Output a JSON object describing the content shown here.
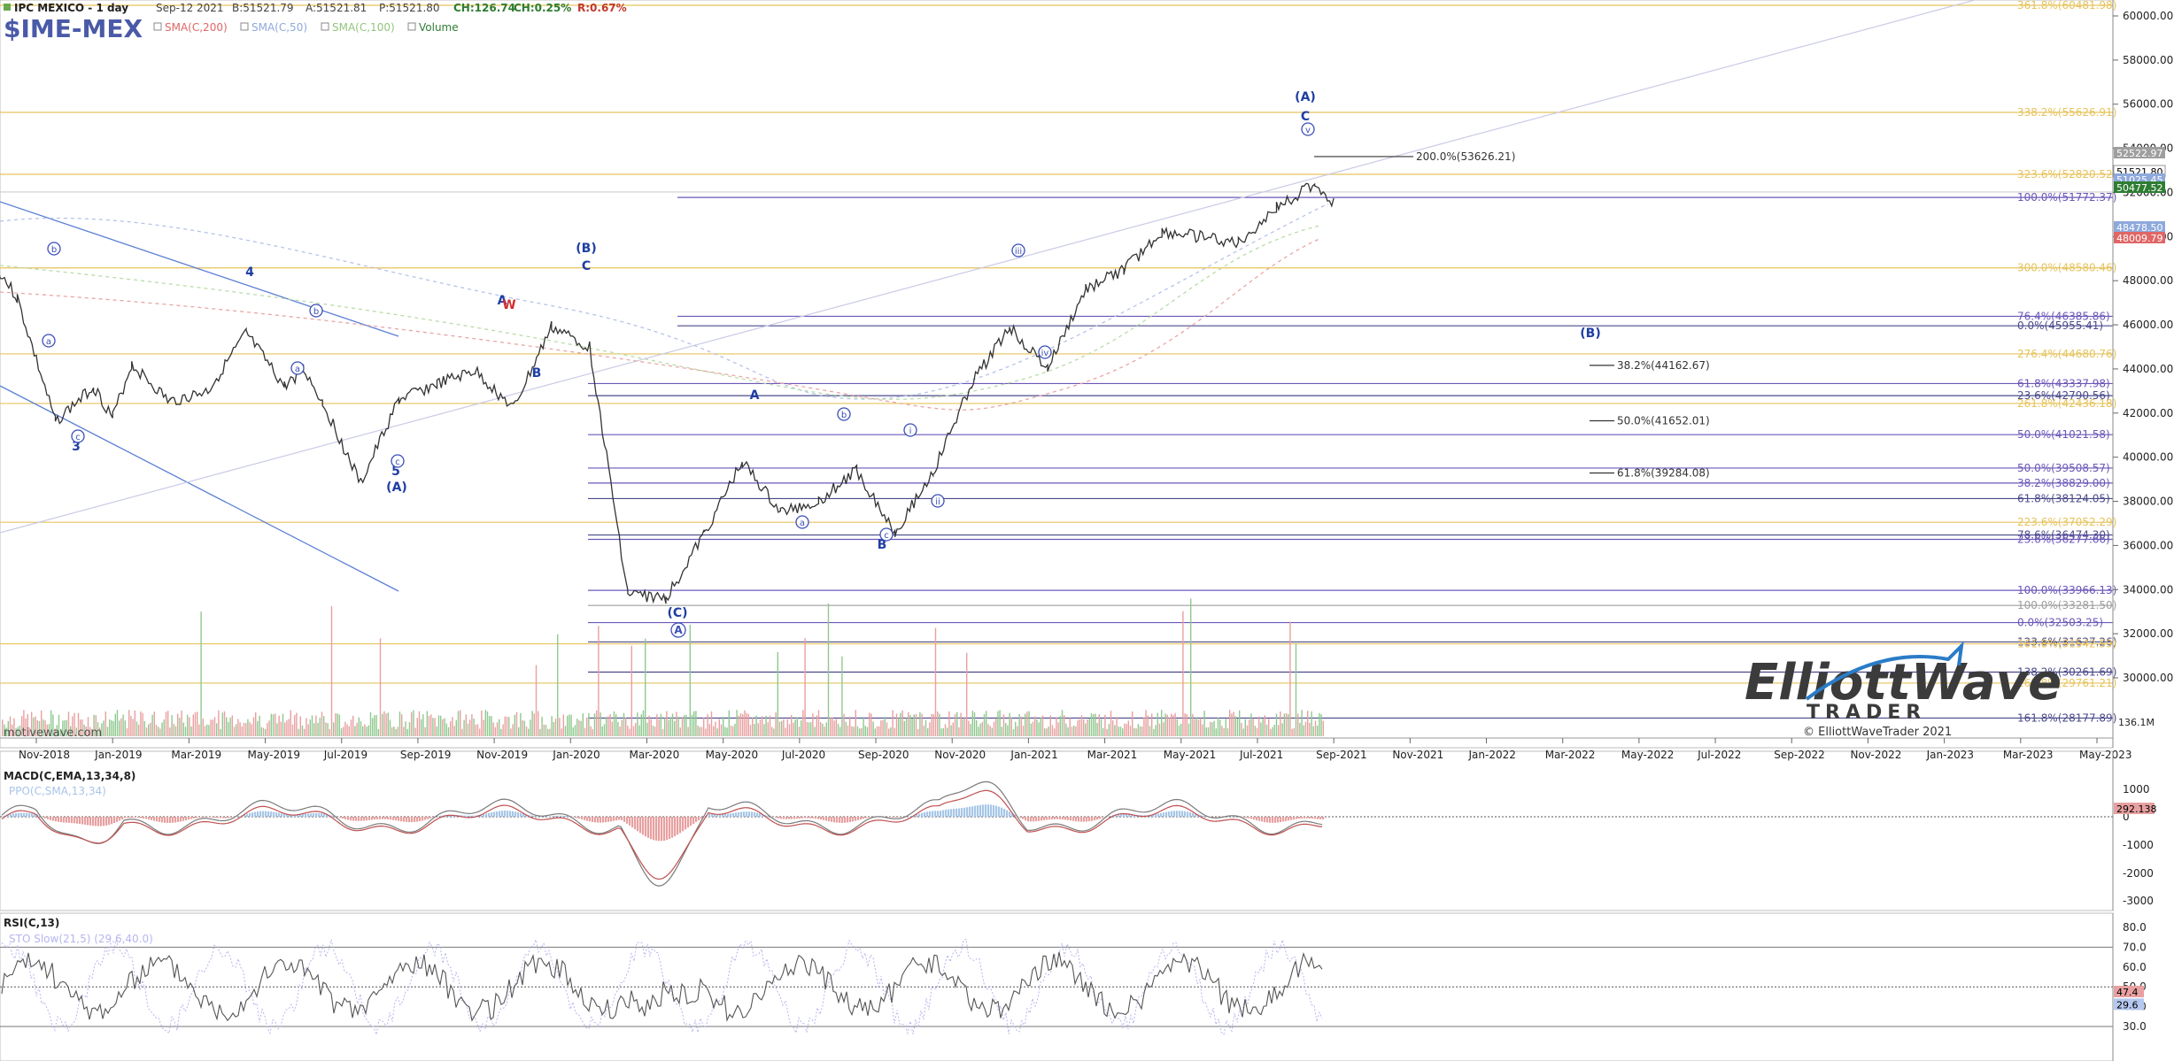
{
  "header": {
    "title": "IPC MEXICO - 1 day",
    "date": "Sep-12 2021",
    "bid": "B:51521.79",
    "ask": "A:51521.81",
    "price": "P:51521.80",
    "change": "CH:126.74",
    "change_pct": "CH:0.25%",
    "range": "R:0.67%",
    "symbol": "$IME-MEX",
    "indicators": [
      {
        "label": "SMA(C,200)",
        "color": "#e06666"
      },
      {
        "label": "SMA(C,50)",
        "color": "#8ea9db"
      },
      {
        "label": "SMA(C,100)",
        "color": "#93c47d"
      },
      {
        "label": "Volume",
        "color": "#2e7d32"
      }
    ],
    "watermark_left": "motivewave.com"
  },
  "logo": {
    "line1": "ElliottWave",
    "line2": "TRADER",
    "copyright": "© ElliottWaveTrader 2021"
  },
  "chart_data": {
    "type": "line",
    "title": "IPC MEXICO - 1 day",
    "x_ticks": [
      "Nov-2018",
      "Jan-2019",
      "Mar-2019",
      "May-2019",
      "Jul-2019",
      "Sep-2019",
      "Nov-2019",
      "Jan-2020",
      "Mar-2020",
      "May-2020",
      "Jul-2020",
      "Sep-2020",
      "Nov-2020",
      "Jan-2021",
      "Mar-2021",
      "May-2021",
      "Jul-2021",
      "Sep-2021",
      "Nov-2021",
      "Jan-2022",
      "Mar-2022",
      "May-2022",
      "Jul-2022",
      "Sep-2022",
      "Nov-2022",
      "Jan-2023",
      "Mar-2023",
      "May-2023"
    ],
    "y_ticks": [
      "60000.00",
      "58000.00",
      "56000.00",
      "54000.00",
      "52000.00",
      "50000.00",
      "48000.00",
      "46000.00",
      "44000.00",
      "42000.00",
      "40000.00",
      "38000.00",
      "36000.00",
      "34000.00",
      "32000.00",
      "30000.00"
    ],
    "ylim": [
      28000,
      61200
    ],
    "price_path": [
      [
        "Oct-2018",
        49800
      ],
      [
        "Nov-2018",
        47200
      ],
      [
        "Dec-2018",
        41600
      ],
      [
        "Jan-2019",
        43200
      ],
      [
        "Jan-2019",
        41800
      ],
      [
        "Feb-2019",
        44200
      ],
      [
        "Mar-2019",
        42500
      ],
      [
        "Apr-2019",
        43000
      ],
      [
        "May-2019",
        45600
      ],
      [
        "Jun-2019",
        43200
      ],
      [
        "Jun-2019",
        44000
      ],
      [
        "Jul-2019",
        42500
      ],
      [
        "Aug-2019",
        38800
      ],
      [
        "Sep-2019",
        42600
      ],
      [
        "Oct-2019",
        43300
      ],
      [
        "Nov-2019",
        43900
      ],
      [
        "Dec-2019",
        42200
      ],
      [
        "Jan-2020",
        45900
      ],
      [
        "Feb-2020",
        45000
      ],
      [
        "Mar-2020",
        33800
      ],
      [
        "Apr-2020",
        33600
      ],
      [
        "May-2020",
        36500
      ],
      [
        "Jun-2020",
        39800
      ],
      [
        "Jul-2020",
        37500
      ],
      [
        "Aug-2020",
        38000
      ],
      [
        "Sep-2020",
        39400
      ],
      [
        "Oct-2020",
        36600
      ],
      [
        "Nov-2020",
        39300
      ],
      [
        "Dec-2020",
        43300
      ],
      [
        "Jan-2021",
        45900
      ],
      [
        "Feb-2021",
        44000
      ],
      [
        "Mar-2021",
        47600
      ],
      [
        "Apr-2021",
        48500
      ],
      [
        "May-2021",
        50200
      ],
      [
        "Jun-2021",
        50000
      ],
      [
        "Jul-2021",
        49700
      ],
      [
        "Aug-2021",
        51300
      ],
      [
        "Sep-2021",
        52400
      ],
      [
        "Sep-2021",
        51521.8
      ]
    ],
    "last_price": "51521.80",
    "price_tags": [
      {
        "value": "52522.97",
        "color": "#9e9e9e"
      },
      {
        "value": "51521.80",
        "color": "#ffffff"
      },
      {
        "value": "51025.45",
        "color": "#8ea9db"
      },
      {
        "value": "50477.52",
        "color": "#2e7d32"
      },
      {
        "value": "48478.50",
        "color": "#8ea9db"
      },
      {
        "value": "48009.79",
        "color": "#e06666"
      }
    ],
    "fib_levels": [
      {
        "label": "361.8%(60481.98)",
        "value": 60481.98,
        "color": "#e6c35c"
      },
      {
        "label": "338.2%(55626.91)",
        "value": 55626.91,
        "color": "#e6c35c"
      },
      {
        "label": "323.6%(52820.52)",
        "value": 52820.52,
        "color": "#e6c35c"
      },
      {
        "label": "100.0%(51772.37)",
        "value": 51772.37,
        "color": "#6b57b8"
      },
      {
        "label": "300.0%(48580.46)",
        "value": 48580.46,
        "color": "#e6c35c"
      },
      {
        "label": "76.4%(46385.86)",
        "value": 46385.86,
        "color": "#6b57b8"
      },
      {
        "label": "0.0%(45955.41)",
        "value": 45955.41,
        "color": "#4a4a8a"
      },
      {
        "label": "276.4%(44680.76)",
        "value": 44680.76,
        "color": "#e6c35c"
      },
      {
        "label": "61.8%(43337.98)",
        "value": 43337.98,
        "color": "#6b57b8"
      },
      {
        "label": "23.6%(42790.56)",
        "value": 42790.56,
        "color": "#4a4a8a"
      },
      {
        "label": "261.8%(42436.18)",
        "value": 42436.18,
        "color": "#e6c35c"
      },
      {
        "label": "50.0%(41021.58)",
        "value": 41021.58,
        "color": "#6b57b8"
      },
      {
        "label": "50.0%(39508.57)",
        "value": 39508.57,
        "color": "#6b57b8"
      },
      {
        "label": "38.2%(38829.00)",
        "value": 38829.0,
        "color": "#6b57b8"
      },
      {
        "label": "61.8%(38124.05)",
        "value": 38124.05,
        "color": "#4a4a8a"
      },
      {
        "label": "223.6%(37052.29)",
        "value": 37052.29,
        "color": "#e6c35c"
      },
      {
        "label": "78.6%(36474.30)",
        "value": 36474.3,
        "color": "#4a4a8a"
      },
      {
        "label": "23.6%(36277.66)",
        "value": 36277.66,
        "color": "#6b57b8"
      },
      {
        "label": "100.0%(33966.13)",
        "value": 33966.13,
        "color": "#6b57b8"
      },
      {
        "label": "100.0%(33281.50)",
        "value": 33281.5,
        "color": "#9e9e9e"
      },
      {
        "label": "0.0%(32503.25)",
        "value": 32503.25,
        "color": "#6b57b8"
      },
      {
        "label": "123.6%(31627.26)",
        "value": 31627.26,
        "color": "#4a4a8a"
      },
      {
        "label": "161.8%(31542.59)",
        "value": 31542.59,
        "color": "#e6c35c"
      },
      {
        "label": "138.2%(30261.69)",
        "value": 30261.69,
        "color": "#4a4a8a"
      },
      {
        "label": "161.8%(29761.21)",
        "value": 29761.21,
        "color": "#e6c35c"
      },
      {
        "label": "161.8%(28177.89)",
        "value": 28177.89,
        "color": "#4a4a8a"
      }
    ],
    "target_labels": [
      {
        "label": "200.0%(53626.21)",
        "value": 53626.21
      },
      {
        "label": "38.2%(44162.67)",
        "value": 44162.67
      },
      {
        "label": "50.0%(41652.01)",
        "value": 41652.01
      },
      {
        "label": "61.8%(39284.08)",
        "value": 39284.08
      }
    ],
    "wave_labels": [
      "3",
      "4",
      "5",
      "(A)",
      "A",
      "W",
      "B",
      "(B)",
      "C",
      "(C)",
      "A",
      "A",
      "B",
      "C",
      "(A)",
      "C",
      "(B)"
    ],
    "wave_circles": [
      "a",
      "b",
      "c",
      "a",
      "b",
      "c",
      "a",
      "b",
      "c",
      "i",
      "ii",
      "iii",
      "iv",
      "v",
      "A"
    ],
    "volume_label": "136.1M",
    "macd": {
      "title": "MACD(C,EMA,13,34,8)",
      "ppo": "PPO(C,SMA,13,34)",
      "y_ticks": [
        "1000",
        "0",
        "-1000",
        "-2000",
        "-3000"
      ],
      "last": "292.138"
    },
    "rsi": {
      "title": "RSI(C,13)",
      "sto": "STO Slow(21,5) (29.6,40.0)",
      "y_ticks": [
        "80.0",
        "70.0",
        "60.0",
        "50.0",
        "40.0",
        "30.0"
      ],
      "last": "47.4",
      "sto_last": "29.6"
    }
  }
}
